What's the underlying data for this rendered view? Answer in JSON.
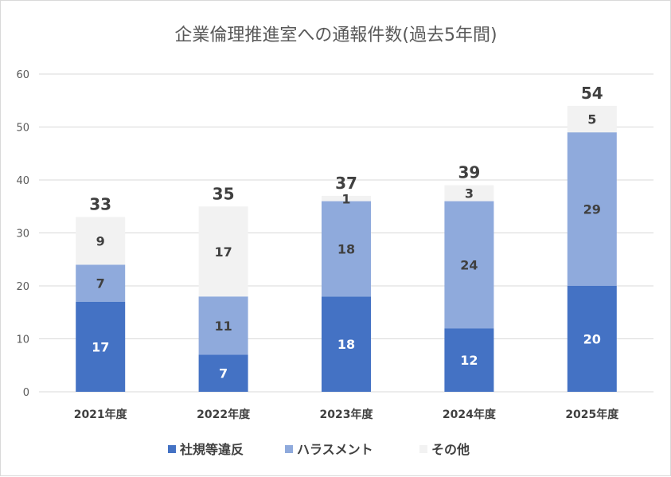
{
  "chart_data": {
    "type": "bar",
    "stacked": true,
    "title": "企業倫理推進室への通報件数(過去5年間)",
    "categories": [
      "2021年度",
      "2022年度",
      "2023年度",
      "2024年度",
      "2025年度"
    ],
    "series": [
      {
        "name": "社規等違反",
        "color": "#4472C4",
        "values": [
          17,
          7,
          18,
          12,
          20
        ]
      },
      {
        "name": "ハラスメント",
        "color": "#8FAADC",
        "values": [
          7,
          11,
          18,
          24,
          29
        ]
      },
      {
        "name": "その他",
        "color": "#F2F2F2",
        "values": [
          9,
          17,
          1,
          3,
          5
        ]
      }
    ],
    "totals": [
      "33",
      "35",
      "37",
      "39",
      "54"
    ],
    "ylim": [
      0,
      60
    ],
    "yticks": [
      0,
      10,
      20,
      30,
      40,
      50,
      60
    ],
    "grid": true,
    "legend": "bottom"
  }
}
